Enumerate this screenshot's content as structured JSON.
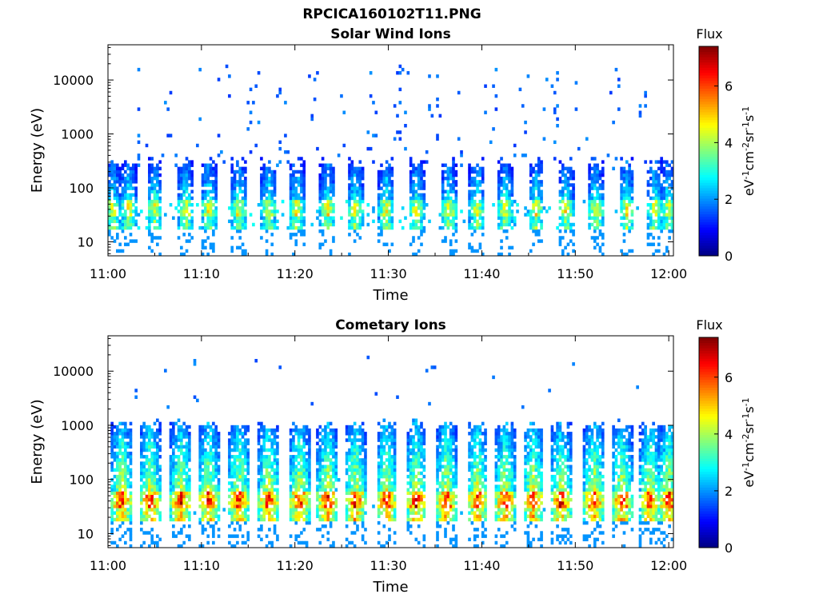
{
  "figure": {
    "title": "RPCICA160102T11.PNG"
  },
  "colorscale": {
    "colors": [
      "#00007f",
      "#0000ff",
      "#007fff",
      "#00ffff",
      "#7fff7f",
      "#ffff00",
      "#ff7f00",
      "#ff0000",
      "#7f0000"
    ]
  },
  "chart_data": [
    {
      "type": "heatmap",
      "title": "Solar Wind Ions",
      "xlabel": "Time",
      "ylabel": "Energy (eV)",
      "x_ticks": [
        "11:00",
        "11:10",
        "11:20",
        "11:30",
        "11:40",
        "11:50",
        "12:00"
      ],
      "x_tick_minutes": [
        0,
        10,
        20,
        30,
        40,
        50,
        60
      ],
      "xlim_minutes": [
        0,
        60.5
      ],
      "y_scale": "log",
      "ylim": [
        5.5,
        45000
      ],
      "y_ticks": [
        10,
        100,
        1000,
        10000
      ],
      "y_tick_labels": [
        "10",
        "100",
        "1000",
        "10000"
      ],
      "colorbar": {
        "title": "Flux",
        "label": "eV-1cm-2sr-1s-1",
        "range": [
          0,
          7.4
        ],
        "ticks": [
          0,
          2,
          4,
          6
        ],
        "tick_labels": [
          "0",
          "2",
          "4",
          "6"
        ]
      },
      "burst_centers_minutes": [
        0.5,
        2.2,
        5.0,
        8.3,
        10.8,
        14.0,
        17.2,
        20.2,
        23.5,
        26.5,
        29.8,
        33.0,
        36.5,
        39.5,
        42.5,
        45.8,
        49.0,
        52.2,
        55.5,
        58.5,
        60.0
      ],
      "burst_peak_flux": 5.2,
      "core_energy_ev": [
        30,
        60
      ],
      "background": "sparse low-flux counts (~1.5) between 200 eV and 20000 eV"
    },
    {
      "type": "heatmap",
      "title": "Cometary Ions",
      "xlabel": "Time",
      "ylabel": "Energy (eV)",
      "x_ticks": [
        "11:00",
        "11:10",
        "11:20",
        "11:30",
        "11:40",
        "11:50",
        "12:00"
      ],
      "x_tick_minutes": [
        0,
        10,
        20,
        30,
        40,
        50,
        60
      ],
      "xlim_minutes": [
        0,
        60.5
      ],
      "y_scale": "log",
      "ylim": [
        5.5,
        45000
      ],
      "y_ticks": [
        10,
        100,
        1000,
        10000
      ],
      "y_tick_labels": [
        "10",
        "100",
        "1000",
        "10000"
      ],
      "colorbar": {
        "title": "Flux",
        "label": "eV-1cm-2sr-1s-1",
        "range": [
          0,
          7.4
        ],
        "ticks": [
          0,
          2,
          4,
          6
        ],
        "tick_labels": [
          "0",
          "2",
          "4",
          "6"
        ]
      },
      "burst_centers_minutes": [
        1.5,
        4.5,
        7.8,
        10.8,
        14.0,
        17.2,
        20.5,
        23.5,
        26.5,
        29.8,
        33.0,
        36.2,
        39.5,
        42.5,
        45.5,
        48.5,
        52.0,
        55.0,
        58.0,
        60.0
      ],
      "burst_peak_flux": 7.0,
      "core_energy_ev": [
        30,
        60
      ],
      "background": "sparse low-flux counts (~1.5) between 2000 eV and 20000 eV"
    }
  ]
}
